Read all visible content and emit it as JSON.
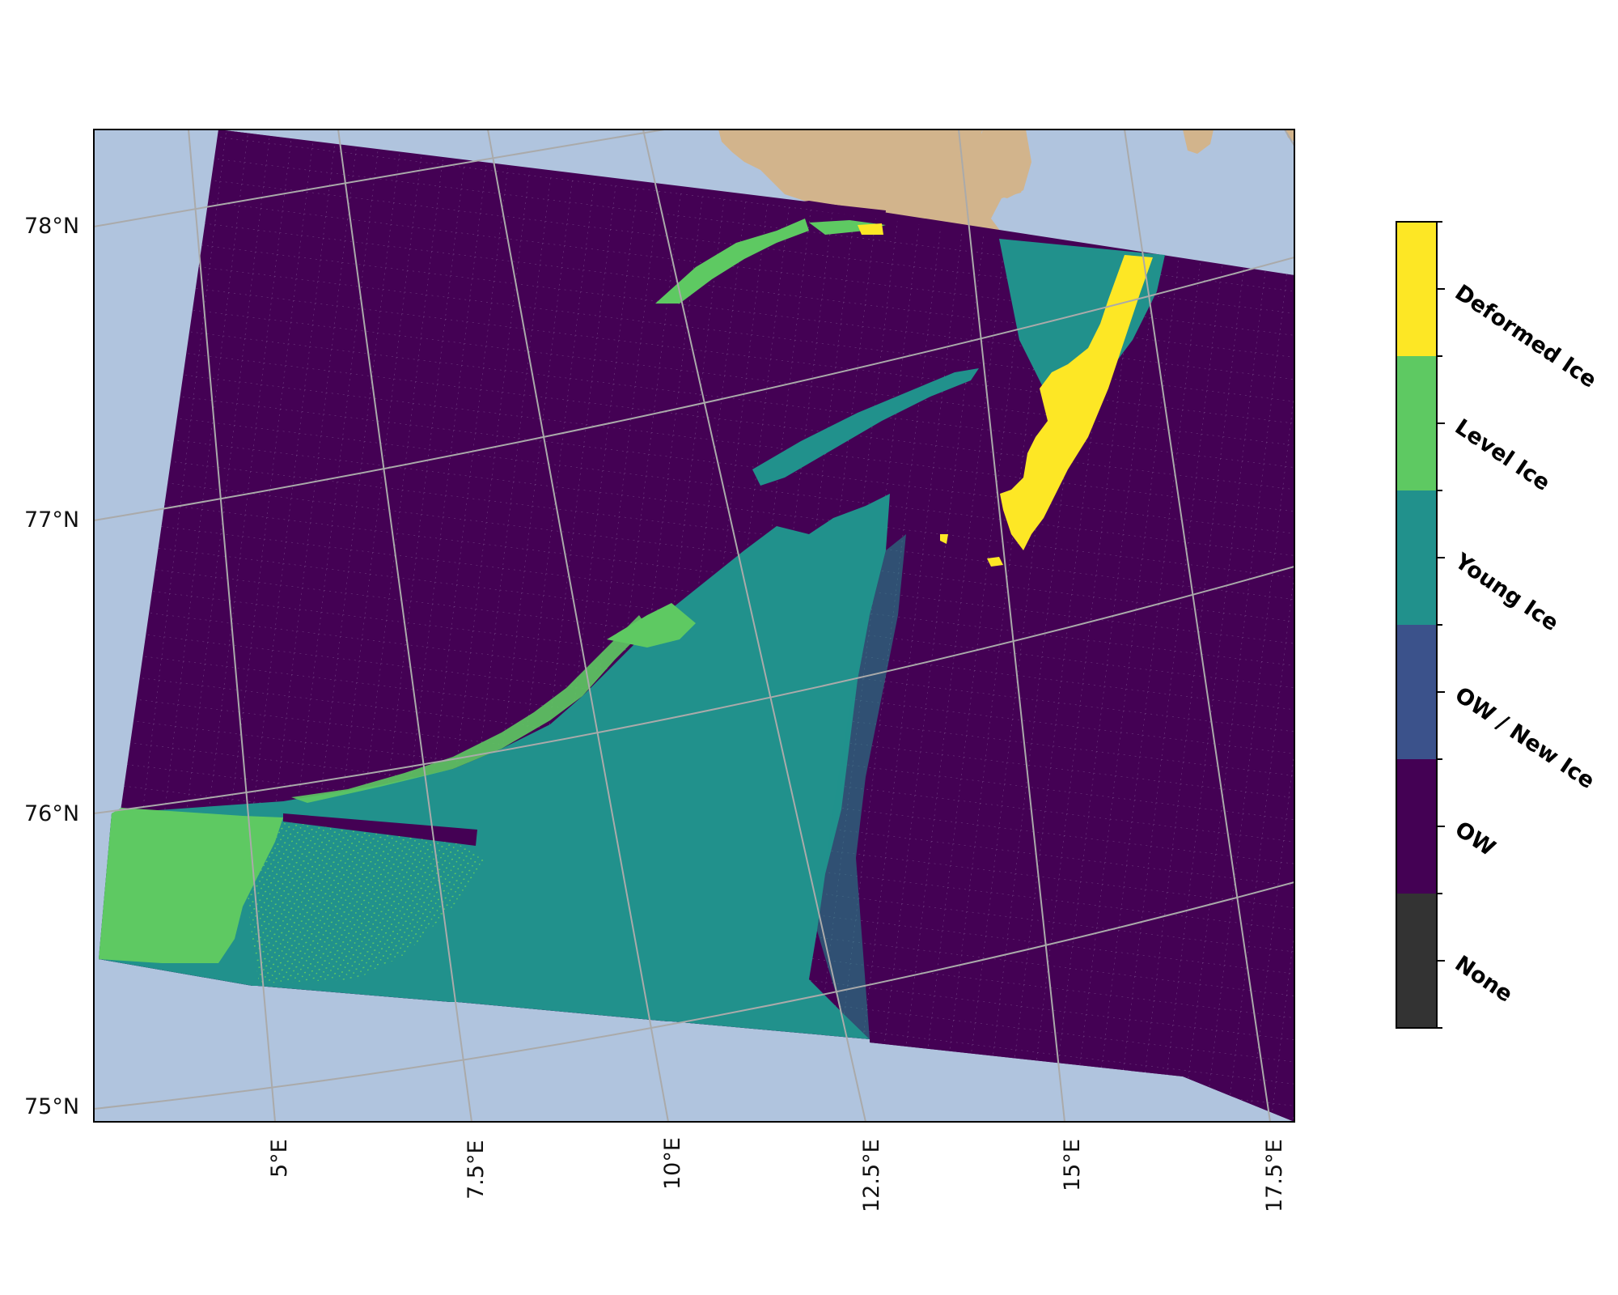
{
  "map": {
    "colors": {
      "ocean": "#b0c4de",
      "land": "#d2b48c",
      "graticule": "#aaaaaa",
      "frame": "#000000"
    },
    "lat_labels": [
      "78°N",
      "77°N",
      "76°N",
      "75°N"
    ],
    "lon_labels": [
      "5°E",
      "7.5°E",
      "10°E",
      "12.5°E",
      "15°E",
      "17.5°E"
    ]
  },
  "legend": {
    "classes": [
      {
        "label": "Deformed Ice",
        "color": "#fde725"
      },
      {
        "label": "Level Ice",
        "color": "#5ec962"
      },
      {
        "label": "Young Ice",
        "color": "#21918c"
      },
      {
        "label": "OW / New Ice",
        "color": "#3b528b"
      },
      {
        "label": "OW",
        "color": "#440154"
      },
      {
        "label": "None",
        "color": "#333333"
      }
    ]
  }
}
